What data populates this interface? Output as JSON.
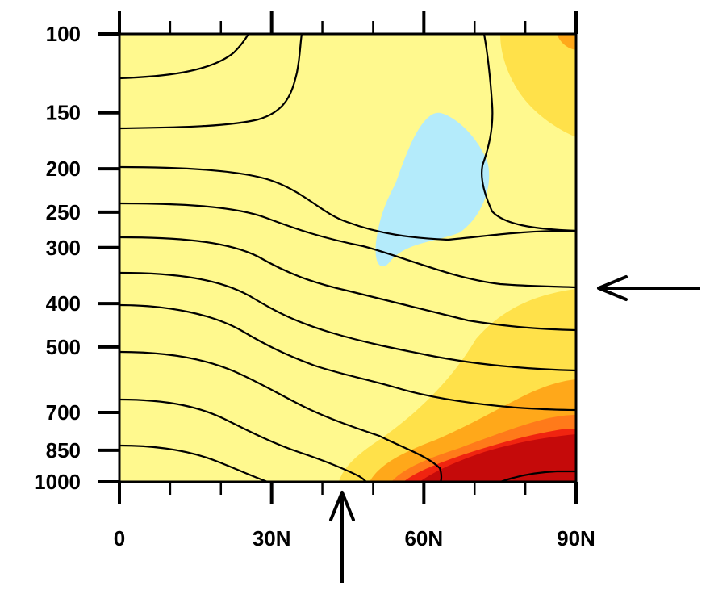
{
  "chart_data": {
    "type": "contour",
    "x_ticks": [
      "0",
      "30N",
      "60N",
      "90N"
    ],
    "x_tick_values": [
      0,
      30,
      60,
      90
    ],
    "y_ticks": [
      "100",
      "150",
      "200",
      "250",
      "300",
      "400",
      "500",
      "700",
      "850",
      "1000"
    ],
    "y_tick_values": [
      100,
      150,
      200,
      250,
      300,
      400,
      500,
      700,
      850,
      1000
    ],
    "xlim": [
      0,
      90
    ],
    "ylim": [
      1000,
      100
    ],
    "y_scale": "log (pressure)",
    "shading": "filled anomaly contours",
    "contours": "black isolines",
    "markers": [
      {
        "type": "arrow",
        "direction": "left",
        "points_to_pressure": 350
      },
      {
        "type": "arrow",
        "direction": "up",
        "points_to_latitude": 41
      }
    ]
  },
  "colors": {
    "background_fill": "#fff98e",
    "light_orange": "#ffe14a",
    "orange": "#ffa81a",
    "dark_orange": "#ff7a1a",
    "red": "#f02410",
    "dark_red": "#c50a0a",
    "light_blue": "#b4ebfb",
    "contour": "#000000"
  }
}
